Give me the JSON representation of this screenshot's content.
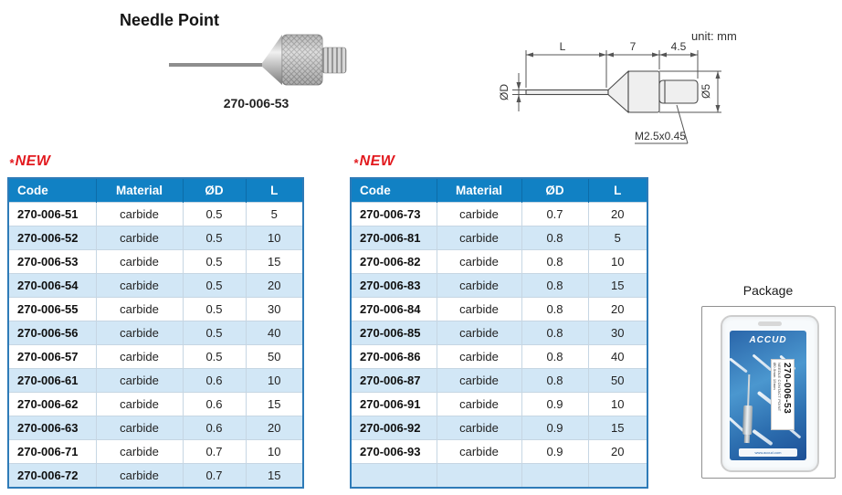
{
  "header": {
    "title": "Needle Point",
    "photo_caption": "270-006-53"
  },
  "diagram": {
    "unit_label": "unit: mm",
    "dims": {
      "l": "L",
      "body": "7",
      "thread": "4.5",
      "needle_dia": "ØD",
      "body_dia": "Ø5",
      "thread_spec": "M2.5x0.45"
    }
  },
  "new_badge": {
    "star": "*",
    "text": "NEW"
  },
  "tables": {
    "headers": [
      "Code",
      "Material",
      "ØD",
      "L"
    ],
    "left": {
      "rows": [
        {
          "code": "270-006-51",
          "material": "carbide",
          "od": "0.5",
          "l": "5"
        },
        {
          "code": "270-006-52",
          "material": "carbide",
          "od": "0.5",
          "l": "10"
        },
        {
          "code": "270-006-53",
          "material": "carbide",
          "od": "0.5",
          "l": "15"
        },
        {
          "code": "270-006-54",
          "material": "carbide",
          "od": "0.5",
          "l": "20"
        },
        {
          "code": "270-006-55",
          "material": "carbide",
          "od": "0.5",
          "l": "30"
        },
        {
          "code": "270-006-56",
          "material": "carbide",
          "od": "0.5",
          "l": "40"
        },
        {
          "code": "270-006-57",
          "material": "carbide",
          "od": "0.5",
          "l": "50"
        },
        {
          "code": "270-006-61",
          "material": "carbide",
          "od": "0.6",
          "l": "10"
        },
        {
          "code": "270-006-62",
          "material": "carbide",
          "od": "0.6",
          "l": "15"
        },
        {
          "code": "270-006-63",
          "material": "carbide",
          "od": "0.6",
          "l": "20"
        },
        {
          "code": "270-006-71",
          "material": "carbide",
          "od": "0.7",
          "l": "10"
        },
        {
          "code": "270-006-72",
          "material": "carbide",
          "od": "0.7",
          "l": "15"
        }
      ]
    },
    "right": {
      "rows": [
        {
          "code": "270-006-73",
          "material": "carbide",
          "od": "0.7",
          "l": "20"
        },
        {
          "code": "270-006-81",
          "material": "carbide",
          "od": "0.8",
          "l": "5"
        },
        {
          "code": "270-006-82",
          "material": "carbide",
          "od": "0.8",
          "l": "10"
        },
        {
          "code": "270-006-83",
          "material": "carbide",
          "od": "0.8",
          "l": "15"
        },
        {
          "code": "270-006-84",
          "material": "carbide",
          "od": "0.8",
          "l": "20"
        },
        {
          "code": "270-006-85",
          "material": "carbide",
          "od": "0.8",
          "l": "30"
        },
        {
          "code": "270-006-86",
          "material": "carbide",
          "od": "0.8",
          "l": "40"
        },
        {
          "code": "270-006-87",
          "material": "carbide",
          "od": "0.8",
          "l": "50"
        },
        {
          "code": "270-006-91",
          "material": "carbide",
          "od": "0.9",
          "l": "10"
        },
        {
          "code": "270-006-92",
          "material": "carbide",
          "od": "0.9",
          "l": "15"
        },
        {
          "code": "270-006-93",
          "material": "carbide",
          "od": "0.9",
          "l": "20"
        },
        {
          "code": "",
          "material": "",
          "od": "",
          "l": ""
        }
      ]
    }
  },
  "package": {
    "label": "Package",
    "brand": "ACCUD",
    "code": "270-006-53",
    "line1": "NEEDLE CONTACT POINT",
    "line2": "Ø0.5mm 15mm",
    "footer": "www.accud.com"
  },
  "colors": {
    "header_bg": "#1181c4",
    "row_alt": "#d2e7f6",
    "table_border": "#2e7bb8",
    "accent_red": "#e2191e",
    "card_blue": "#2a66aa"
  }
}
